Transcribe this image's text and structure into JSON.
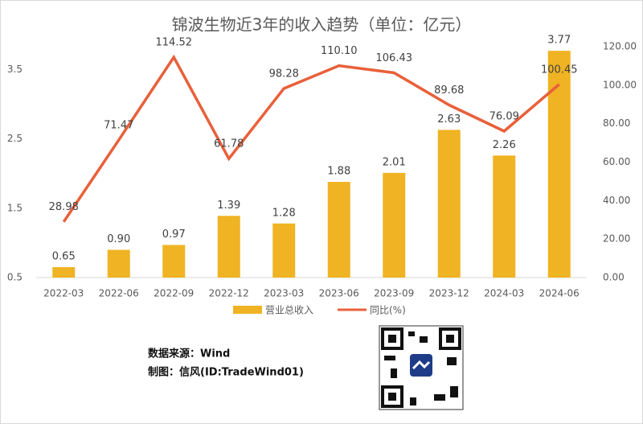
{
  "chart_data": {
    "type": "bar-line",
    "title": "锦波生物近3年的收入趋势（单位：亿元）",
    "categories": [
      "2022-03",
      "2022-06",
      "2022-09",
      "2022-12",
      "2023-03",
      "2023-06",
      "2023-09",
      "2023-12",
      "2024-03",
      "2024-06"
    ],
    "series": [
      {
        "name": "营业总收入",
        "color": "#f0b323",
        "type": "bar",
        "values": [
          0.65,
          0.9,
          0.97,
          1.39,
          1.28,
          1.88,
          2.01,
          2.63,
          2.26,
          3.77
        ],
        "value_labels": [
          "0.65",
          "0.90",
          "0.97",
          "1.39",
          "1.28",
          "1.88",
          "2.01",
          "2.63",
          "2.26",
          "3.77"
        ]
      },
      {
        "name": "同比(%)",
        "color": "#e9603a",
        "type": "line",
        "axis": "y2",
        "values": [
          28.98,
          71.47,
          114.52,
          61.78,
          98.28,
          110.1,
          106.43,
          89.68,
          76.09,
          100.45
        ],
        "value_labels": [
          "28.98",
          "71.47",
          "114.52",
          "61.78",
          "98.28",
          "110.10",
          "106.43",
          "89.68",
          "76.09",
          "100.45"
        ]
      }
    ],
    "ylim": [
      0.5,
      3.83
    ],
    "yticks": [
      0.5,
      1.5,
      2.5,
      3.5
    ],
    "y2lim": [
      0,
      120
    ],
    "y2ticks": [
      {
        "value": 0,
        "label": "0.00"
      },
      {
        "value": 20,
        "label": "20.00"
      },
      {
        "value": 40,
        "label": "40.00"
      },
      {
        "value": 60,
        "label": "60.00"
      },
      {
        "value": 80,
        "label": "80.00"
      },
      {
        "value": 100,
        "label": "100.00"
      },
      {
        "value": 120,
        "label": "120.00"
      }
    ],
    "legend": "bottom",
    "notes": [
      "数据来源：Wind",
      "制图：信风(ID:TradeWind01)"
    ]
  }
}
